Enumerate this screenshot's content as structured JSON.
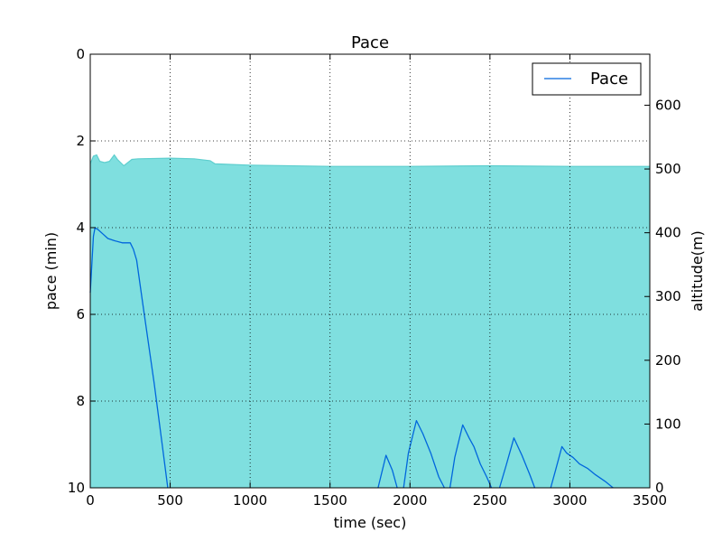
{
  "chart_data": {
    "type": "area",
    "title": "Pace",
    "xlabel": "time (sec)",
    "ylabel": "pace (min)",
    "y2label": "altitude(m)",
    "xlim": [
      0,
      3500
    ],
    "ylim": [
      10,
      0
    ],
    "y2lim": [
      0,
      680
    ],
    "y_inverted": true,
    "grid": true,
    "legend_position": "top-right",
    "x_ticks": [
      "0",
      "500",
      "1000",
      "1500",
      "2000",
      "2500",
      "3000",
      "3500"
    ],
    "y_ticks": [
      "0",
      "2",
      "4",
      "6",
      "8",
      "10"
    ],
    "y2_ticks": [
      "0",
      "100",
      "200",
      "300",
      "400",
      "500",
      "600"
    ],
    "colors": {
      "pace_line": "#0066dd",
      "altitude_fill": "#7fdfdf",
      "altitude_edge": "#5ecece"
    },
    "series": [
      {
        "name": "Pace",
        "axis": "left",
        "segments": [
          [
            [
              0,
              5.5
            ],
            [
              20,
              4.2
            ],
            [
              30,
              4.0
            ],
            [
              50,
              4.05
            ],
            [
              80,
              4.15
            ],
            [
              110,
              4.25
            ],
            [
              150,
              4.3
            ],
            [
              200,
              4.35
            ],
            [
              250,
              4.35
            ],
            [
              270,
              4.5
            ],
            [
              290,
              4.75
            ],
            [
              330,
              5.8
            ],
            [
              400,
              7.6
            ],
            [
              450,
              9.0
            ],
            [
              485,
              10.0
            ]
          ],
          [
            [
              1800,
              10.0
            ],
            [
              1850,
              9.25
            ],
            [
              1890,
              9.6
            ],
            [
              1920,
              10.0
            ]
          ],
          [
            [
              1960,
              10.0
            ],
            [
              1990,
              9.2
            ],
            [
              2040,
              8.45
            ],
            [
              2080,
              8.75
            ],
            [
              2130,
              9.2
            ],
            [
              2180,
              9.75
            ],
            [
              2215,
              10.0
            ]
          ],
          [
            [
              2250,
              10.0
            ],
            [
              2280,
              9.3
            ],
            [
              2330,
              8.55
            ],
            [
              2370,
              8.85
            ],
            [
              2400,
              9.05
            ],
            [
              2440,
              9.45
            ],
            [
              2480,
              9.75
            ],
            [
              2510,
              10.0
            ]
          ],
          [
            [
              2560,
              10.0
            ],
            [
              2600,
              9.5
            ],
            [
              2650,
              8.85
            ],
            [
              2700,
              9.25
            ],
            [
              2750,
              9.7
            ],
            [
              2780,
              10.0
            ]
          ],
          [
            [
              2880,
              10.0
            ],
            [
              2910,
              9.6
            ],
            [
              2950,
              9.05
            ],
            [
              2980,
              9.2
            ],
            [
              3020,
              9.3
            ],
            [
              3060,
              9.45
            ],
            [
              3110,
              9.55
            ],
            [
              3160,
              9.7
            ],
            [
              3220,
              9.85
            ],
            [
              3270,
              10.0
            ]
          ]
        ]
      },
      {
        "axis": "right",
        "type": "area",
        "points": [
          [
            0,
            508
          ],
          [
            20,
            520
          ],
          [
            40,
            522
          ],
          [
            60,
            512
          ],
          [
            90,
            510
          ],
          [
            120,
            512
          ],
          [
            150,
            522
          ],
          [
            170,
            515
          ],
          [
            210,
            505
          ],
          [
            260,
            515
          ],
          [
            300,
            516
          ],
          [
            500,
            517
          ],
          [
            650,
            516
          ],
          [
            750,
            513
          ],
          [
            780,
            508
          ],
          [
            1000,
            506
          ],
          [
            1500,
            504
          ],
          [
            2000,
            504
          ],
          [
            2500,
            505
          ],
          [
            3000,
            504
          ],
          [
            3500,
            504
          ]
        ]
      }
    ]
  }
}
